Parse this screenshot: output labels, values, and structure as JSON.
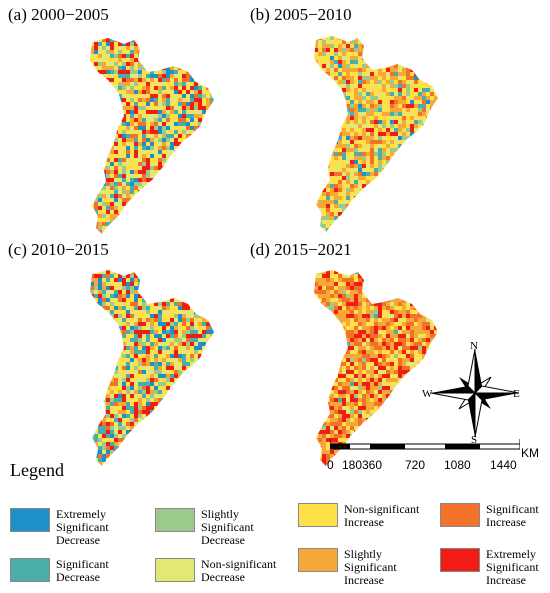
{
  "panels": [
    {
      "label": "(a) 2000−2005",
      "palette": "a"
    },
    {
      "label": "(b) 2005−2010",
      "palette": "b"
    },
    {
      "label": "(c) 2010−2015",
      "palette": "c"
    },
    {
      "label": "(d) 2015−2021",
      "palette": "d"
    }
  ],
  "legend": {
    "title": "Legend",
    "items": [
      {
        "label": "Extremely\nSignificant\nDecrease",
        "color": "#1f8fc8"
      },
      {
        "label": "Slightly\nSignificant\nDecrease",
        "color": "#9cc98c"
      },
      {
        "label": "Non-significant\nIncrease",
        "color": "#fde04a"
      },
      {
        "label": "Significant\nIncrease",
        "color": "#f2722a"
      },
      {
        "label": "Significant\nDecrease",
        "color": "#4aadaa"
      },
      {
        "label": "Non-significant\nDecrease",
        "color": "#e3e873"
      },
      {
        "label": "Slightly\nSignificant\nIncrease",
        "color": "#f5a835"
      },
      {
        "label": "Extremely\nSignificant\nIncrease",
        "color": "#ef1d16"
      }
    ]
  },
  "compass": {
    "n": "N",
    "s": "S",
    "e": "E",
    "w": "W"
  },
  "scale": {
    "ticks": [
      "0",
      "180",
      "360",
      "720",
      "1080",
      "1440"
    ],
    "unit": "KM"
  }
}
